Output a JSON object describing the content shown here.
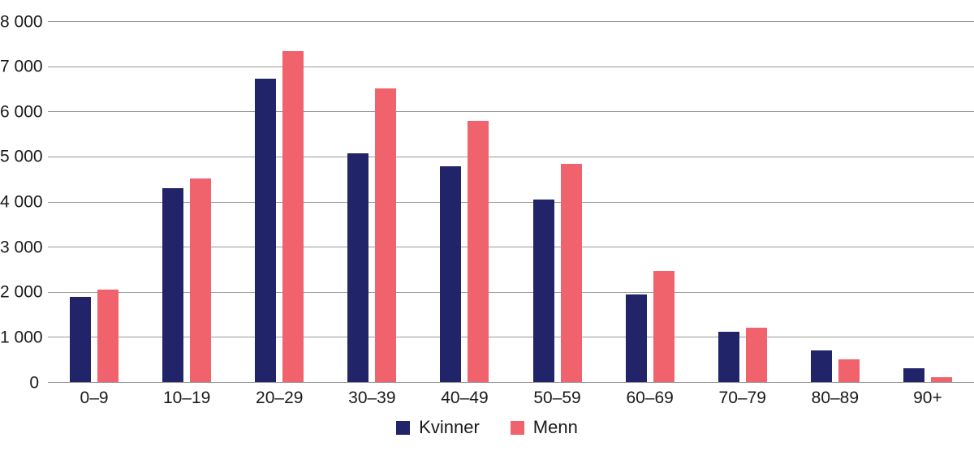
{
  "chart_data": {
    "type": "bar",
    "title": "",
    "xlabel": "",
    "ylabel": "",
    "categories": [
      "0–9",
      "10–19",
      "20–29",
      "30–39",
      "40–49",
      "50–59",
      "60–69",
      "70–79",
      "80–89",
      "90+"
    ],
    "series": [
      {
        "name": "Kvinner",
        "color": "#22246a",
        "values": [
          1880,
          4290,
          6720,
          5070,
          4790,
          4040,
          1940,
          1120,
          700,
          310
        ]
      },
      {
        "name": "Menn",
        "color": "#f0636d",
        "values": [
          2050,
          4510,
          7330,
          6510,
          5790,
          4840,
          2460,
          1210,
          500,
          110
        ]
      }
    ],
    "ylim": [
      0,
      8000
    ],
    "ytick_interval": 1000,
    "ytick_labels": [
      "0",
      "1 000",
      "2 000",
      "3 000",
      "4 000",
      "5 000",
      "6 000",
      "7 000",
      "8 000"
    ],
    "grid": true,
    "gridline_color": "#999999",
    "text_color": "#1a1a1a",
    "legend_position": "bottom"
  }
}
